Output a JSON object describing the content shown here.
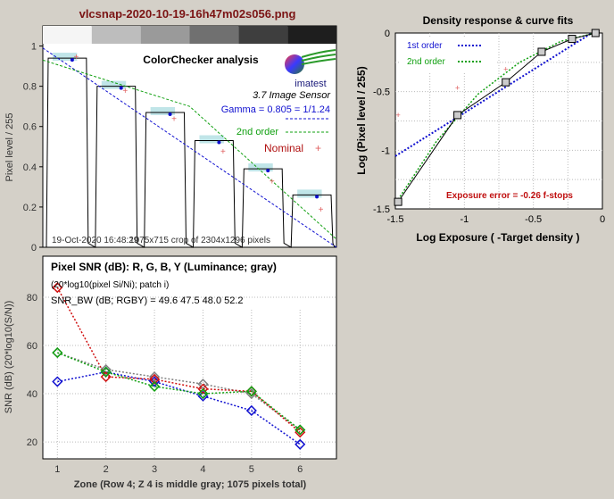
{
  "window": {
    "title": "vlcsnap-2020-10-19-16h47m02s056.png"
  },
  "colors": {
    "bg": "#d4d0c8",
    "title": "#7b1414",
    "red": "#d01010",
    "green": "#10a010",
    "blue": "#1010d0",
    "gray": "#707070",
    "nominal": "#e06060"
  },
  "chart_data": [
    {
      "id": "colorchecker",
      "type": "line",
      "title": "ColorChecker analysis",
      "logo": "imatest",
      "sensor_label": "3.7  Image Sensor",
      "gamma_text": "Gamma = 0.805 = 1/1.24",
      "second_order_text": "2nd order",
      "nominal_text": "Nominal",
      "timestamp": "19-Oct-2020 16:48:29",
      "crop_text": "1075x715 crop of 2304x1296 pixels",
      "ylabel": "Pixel level / 255",
      "ylim": [
        0,
        1.1
      ],
      "yticks": [
        0,
        0.2,
        0.4,
        0.6,
        0.8,
        1
      ],
      "ytick_labels": [
        "0",
        "0.2",
        "0.4",
        "0.6",
        "0.8",
        "1"
      ],
      "strip_grays": [
        "#f5f5f5",
        "#bdbdbd",
        "#9a9a9a",
        "#707070",
        "#3e3e3e",
        "#1e1e1e"
      ],
      "patch_levels": [
        0.94,
        0.8,
        0.67,
        0.53,
        0.39,
        0.26
      ],
      "nominal_values": [
        0.95,
        0.78,
        0.64,
        0.48,
        0.33,
        0.19
      ],
      "fit_first_order": [
        [
          0,
          0.99
        ],
        [
          1,
          0.0
        ]
      ],
      "fit_second_order": [
        [
          0,
          0.93
        ],
        [
          0.5,
          0.7
        ],
        [
          1,
          0.04
        ]
      ]
    },
    {
      "id": "density",
      "type": "line",
      "title": "Density response & curve fits",
      "xlabel": "Log Exposure ( -Target density )",
      "ylabel": "Log (Pixel level / 255)",
      "xlim": [
        -1.5,
        0
      ],
      "ylim": [
        -1.5,
        0
      ],
      "xticks": [
        -1.5,
        -1,
        -0.5,
        0
      ],
      "xtick_labels": [
        "-1.5",
        "-1",
        "-0.5",
        "0"
      ],
      "yticks": [
        -1.5,
        -1,
        -0.5,
        0
      ],
      "ytick_labels": [
        "-1.5",
        "-1",
        "-0.5",
        "0"
      ],
      "legend": [
        {
          "name": "1st order",
          "color": "#1010d0"
        },
        {
          "name": "2nd order",
          "color": "#10a010"
        }
      ],
      "measured_x": [
        -1.48,
        -1.05,
        -0.7,
        -0.44,
        -0.22,
        -0.05
      ],
      "measured_y": [
        -1.44,
        -0.7,
        -0.42,
        -0.16,
        -0.05,
        0.0
      ],
      "nominal_x": [
        -1.48,
        -1.05,
        -0.7
      ],
      "nominal_y": [
        -0.7,
        -0.47,
        -0.31
      ],
      "fit_first_order": [
        [
          -1.5,
          -1.05
        ],
        [
          -0.05,
          0.02
        ]
      ],
      "fit_second_order": [
        [
          -1.48,
          -1.42
        ],
        [
          -1.2,
          -0.92
        ],
        [
          -0.9,
          -0.52
        ],
        [
          -0.6,
          -0.25
        ],
        [
          -0.3,
          -0.07
        ],
        [
          -0.05,
          0.0
        ]
      ],
      "annotation": "Exposure error = -0.26 f-stops"
    },
    {
      "id": "snr",
      "type": "line",
      "title": "Pixel SNR (dB): R, G, B, Y (Luminance; gray)",
      "subtitle": "(20*log10(pixel Si/Ni); patch i)",
      "snr_bw_text": "SNR_BW (dB; RGBY) = 49.6 47.5 48.0 52.2",
      "xlabel": "Zone  (Row 4; Z 4 is middle gray;  1075 pixels total)",
      "ylabel": "SNR (dB) (20*log10(S/N))",
      "categories": [
        1,
        2,
        3,
        4,
        5,
        6
      ],
      "xlim": [
        0.7,
        6.75
      ],
      "ylim": [
        13,
        97
      ],
      "yticks": [
        20,
        40,
        60,
        80
      ],
      "ytick_labels": [
        "20",
        "40",
        "60",
        "80"
      ],
      "xtick_labels": [
        "1",
        "2",
        "3",
        "4",
        "5",
        "6"
      ],
      "series": [
        {
          "name": "R",
          "color": "#d01010",
          "values": [
            84,
            47,
            46,
            42,
            41,
            24
          ]
        },
        {
          "name": "G",
          "color": "#10a010",
          "values": [
            57,
            49,
            43,
            40,
            41,
            25
          ]
        },
        {
          "name": "B",
          "color": "#1010d0",
          "values": [
            45,
            49,
            45,
            39,
            33,
            19
          ]
        },
        {
          "name": "Y",
          "color": "#808080",
          "values": [
            57,
            50,
            47,
            44,
            40,
            25
          ]
        }
      ]
    }
  ]
}
